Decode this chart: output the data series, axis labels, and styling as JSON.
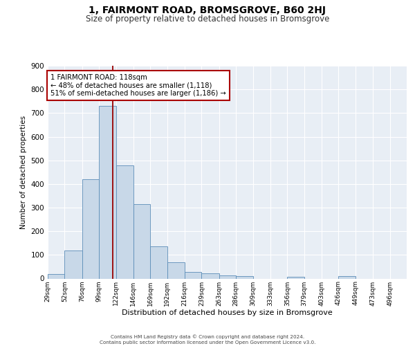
{
  "title": "1, FAIRMONT ROAD, BROMSGROVE, B60 2HJ",
  "subtitle": "Size of property relative to detached houses in Bromsgrove",
  "xlabel": "Distribution of detached houses by size in Bromsgrove",
  "ylabel": "Number of detached properties",
  "bar_values": [
    20,
    120,
    420,
    730,
    480,
    315,
    135,
    70,
    28,
    22,
    12,
    10,
    0,
    0,
    8,
    0,
    0,
    10,
    0,
    0,
    0
  ],
  "bin_edges": [
    29,
    52,
    76,
    99,
    122,
    146,
    169,
    192,
    216,
    239,
    263,
    286,
    309,
    333,
    356,
    379,
    403,
    426,
    449,
    473,
    496,
    519
  ],
  "bin_labels": [
    "29sqm",
    "52sqm",
    "76sqm",
    "99sqm",
    "122sqm",
    "146sqm",
    "169sqm",
    "192sqm",
    "216sqm",
    "239sqm",
    "263sqm",
    "286sqm",
    "309sqm",
    "333sqm",
    "356sqm",
    "379sqm",
    "403sqm",
    "426sqm",
    "449sqm",
    "473sqm",
    "496sqm"
  ],
  "bar_color": "#c8d8e8",
  "bar_edge_color": "#5b8db8",
  "vline_x": 118,
  "vline_color": "#990000",
  "annotation_line1": "1 FAIRMONT ROAD: 118sqm",
  "annotation_line2": "← 48% of detached houses are smaller (1,118)",
  "annotation_line3": "51% of semi-detached houses are larger (1,186) →",
  "annotation_box_color": "#ffffff",
  "annotation_box_edge": "#aa0000",
  "ylim": [
    0,
    900
  ],
  "yticks": [
    0,
    100,
    200,
    300,
    400,
    500,
    600,
    700,
    800,
    900
  ],
  "plot_background": "#e8eef5",
  "grid_color": "#ffffff",
  "footer_line1": "Contains HM Land Registry data © Crown copyright and database right 2024.",
  "footer_line2": "Contains public sector information licensed under the Open Government Licence v3.0."
}
